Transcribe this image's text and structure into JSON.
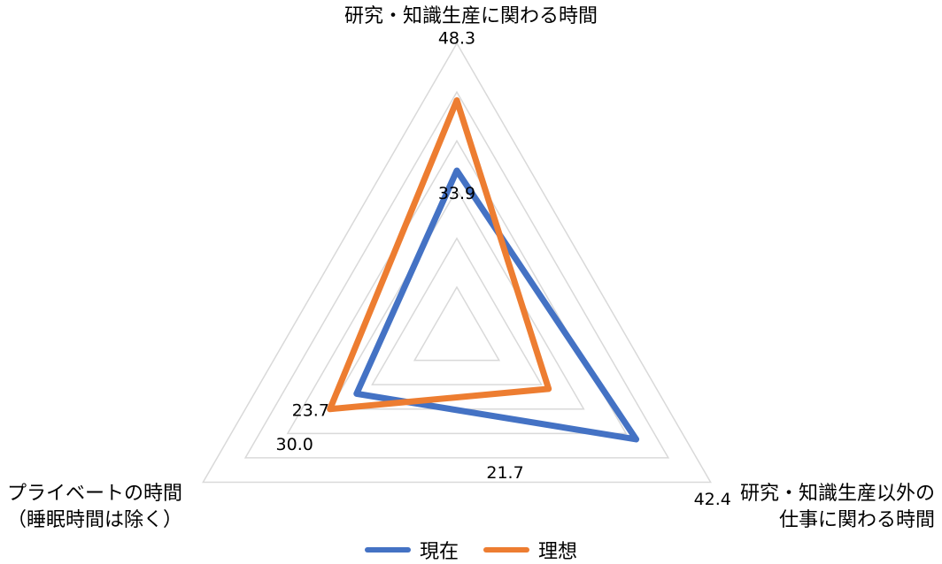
{
  "chart_data": {
    "type": "radar",
    "axes": [
      {
        "key": "top",
        "label_lines": [
          "研究・知識生産に関わる時間"
        ]
      },
      {
        "key": "right",
        "label_lines": [
          "研究・知識生産以外の",
          "仕事に関わる時間"
        ]
      },
      {
        "key": "left",
        "label_lines": [
          "プライベートの時間",
          "（睡眠時間は除く）"
        ]
      }
    ],
    "rmax": 60,
    "grid_levels": [
      10,
      20,
      30,
      40,
      50,
      60
    ],
    "series": [
      {
        "name": "現在",
        "color": "#4472C4",
        "values": {
          "top": 33.9,
          "right": 42.4,
          "left": 23.7
        }
      },
      {
        "name": "理想",
        "color": "#ED7D31",
        "values": {
          "top": 48.3,
          "right": 21.7,
          "left": 30.0
        }
      }
    ],
    "data_labels": [
      {
        "text": "48.3",
        "series": "理想",
        "axis": "top"
      },
      {
        "text": "33.9",
        "series": "現在",
        "axis": "top"
      },
      {
        "text": "21.7",
        "series": "理想",
        "axis": "right"
      },
      {
        "text": "42.4",
        "series": "現在",
        "axis": "right"
      },
      {
        "text": "23.7",
        "series": "現在",
        "axis": "left"
      },
      {
        "text": "30.0",
        "series": "理想",
        "axis": "left"
      }
    ],
    "legend": {
      "placement": "bottom",
      "entries": [
        "現在",
        "理想"
      ]
    },
    "grid": true
  }
}
